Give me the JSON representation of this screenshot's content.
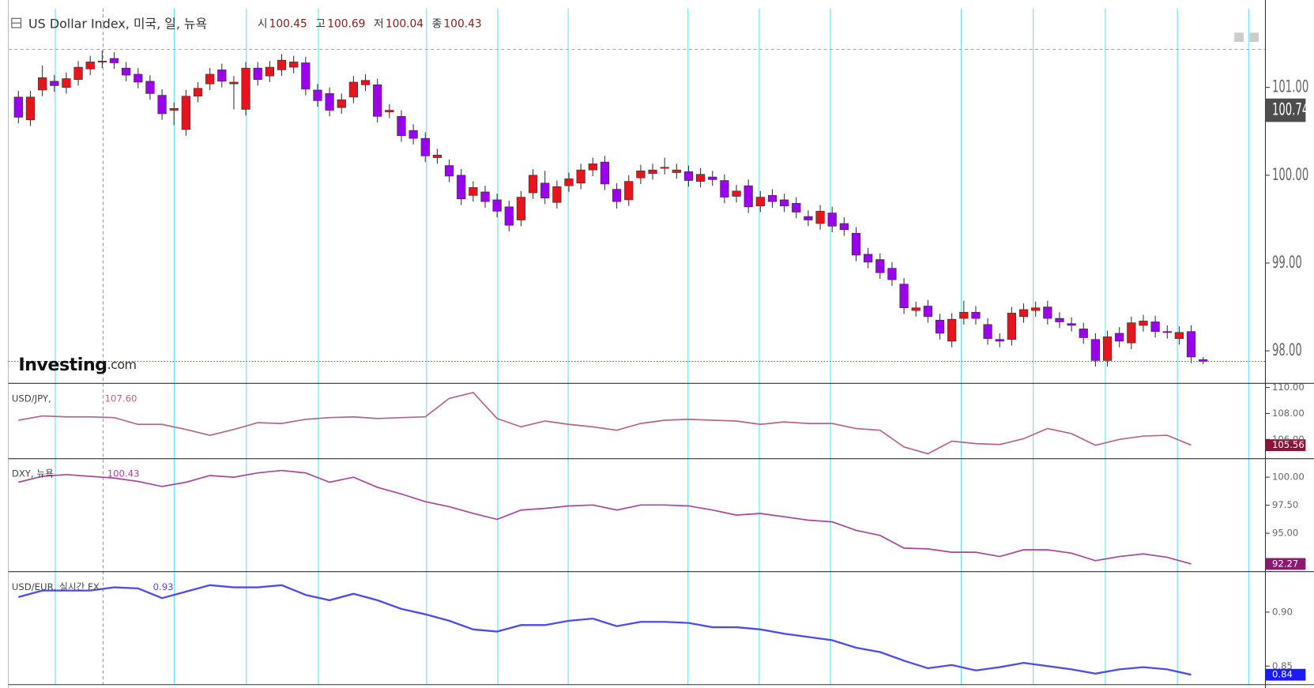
{
  "chart_data": [
    {
      "type": "candlestick",
      "title": "US Dollar Index, 미국, 일, 뉴욕",
      "info": [
        {
          "label": "시",
          "value": 100.45
        },
        {
          "label": "고",
          "value": 100.69
        },
        {
          "label": "저",
          "value": 100.04
        },
        {
          "label": "종",
          "value": 100.43
        }
      ],
      "watermark": [
        "Investing",
        ".com"
      ],
      "up_color": "#e8131b",
      "down_color": "#9b00ef",
      "cursor_value": 100.74,
      "ylim": [
        97.63,
        101.9
      ],
      "yticks": [
        {
          "value": 98,
          "label": "98.00"
        },
        {
          "value": 99,
          "label": "99.00"
        },
        {
          "value": 100,
          "label": "100.00"
        },
        {
          "value": 101,
          "label": "101.00"
        }
      ],
      "open": [
        100.89,
        100.63,
        100.97,
        101.07,
        101.0,
        101.09,
        101.21,
        101.29,
        101.33,
        101.22,
        101.15,
        101.07,
        100.91,
        100.74,
        100.52,
        100.9,
        101.04,
        101.2,
        101.04,
        100.75,
        101.22,
        101.13,
        101.2,
        101.23,
        101.28,
        100.97,
        100.93,
        100.77,
        100.89,
        101.03,
        101.03,
        100.72,
        100.67,
        100.51,
        100.42,
        100.2,
        100.11,
        100.0,
        99.77,
        99.81,
        99.72,
        99.64,
        99.49,
        99.8,
        99.91,
        99.69,
        99.88,
        99.91,
        100.06,
        100.15,
        99.84,
        99.72,
        99.97,
        100.02,
        100.08,
        100.03,
        100.04,
        99.93,
        99.98,
        99.94,
        99.76,
        99.88,
        99.65,
        99.77,
        99.72,
        99.68,
        99.53,
        99.45,
        99.57,
        99.45,
        99.34,
        99.1,
        99.04,
        98.94,
        98.76,
        98.46,
        98.51,
        98.35,
        98.11,
        98.37,
        98.44,
        98.3,
        98.13,
        98.13,
        98.39,
        98.46,
        98.5,
        98.37,
        98.31,
        98.25,
        98.13,
        97.89,
        98.2,
        98.09,
        98.29,
        98.33,
        98.22,
        98.14,
        98.22,
        97.9
      ],
      "high": [
        100.96,
        100.96,
        101.25,
        101.14,
        101.17,
        101.3,
        101.36,
        101.42,
        101.4,
        101.29,
        101.22,
        101.14,
        100.98,
        100.83,
        100.97,
        101.06,
        101.22,
        101.27,
        101.13,
        101.29,
        101.29,
        101.3,
        101.38,
        101.36,
        101.35,
        101.04,
        101.0,
        100.93,
        101.13,
        101.15,
        101.1,
        100.81,
        100.74,
        100.58,
        100.49,
        100.3,
        100.18,
        100.07,
        99.93,
        99.88,
        99.79,
        99.71,
        99.82,
        100.07,
        100.05,
        99.94,
        100.03,
        100.13,
        100.2,
        100.22,
        99.91,
        100.0,
        100.12,
        100.13,
        100.2,
        100.13,
        100.11,
        100.08,
        100.05,
        100.01,
        99.89,
        99.95,
        99.82,
        99.84,
        99.79,
        99.75,
        99.6,
        99.66,
        99.64,
        99.52,
        99.41,
        99.17,
        99.11,
        99.01,
        98.83,
        98.56,
        98.58,
        98.42,
        98.43,
        98.57,
        98.51,
        98.37,
        98.2,
        98.5,
        98.54,
        98.56,
        98.57,
        98.44,
        98.38,
        98.32,
        98.2,
        98.23,
        98.27,
        98.39,
        98.41,
        98.4,
        98.29,
        98.28,
        98.29,
        97.93
      ],
      "low": [
        100.59,
        100.56,
        100.9,
        100.95,
        100.93,
        101.02,
        101.14,
        101.22,
        101.21,
        101.07,
        100.99,
        100.86,
        100.63,
        100.57,
        100.45,
        100.83,
        100.97,
        101.0,
        100.75,
        100.68,
        101.02,
        101.06,
        101.13,
        101.16,
        100.91,
        100.78,
        100.67,
        100.7,
        100.82,
        100.96,
        100.6,
        100.65,
        100.38,
        100.35,
        100.15,
        100.13,
        99.92,
        99.66,
        99.7,
        99.63,
        99.52,
        99.36,
        99.42,
        99.73,
        99.67,
        99.62,
        99.81,
        99.84,
        99.99,
        99.83,
        99.62,
        99.65,
        99.9,
        99.95,
        100.01,
        99.96,
        99.87,
        99.86,
        99.88,
        99.68,
        99.69,
        99.57,
        99.58,
        99.63,
        99.58,
        99.51,
        99.42,
        99.38,
        99.35,
        99.31,
        99.02,
        98.94,
        98.82,
        98.74,
        98.42,
        98.39,
        98.32,
        98.13,
        98.04,
        98.3,
        98.3,
        98.07,
        98.04,
        98.06,
        98.32,
        98.39,
        98.3,
        98.26,
        98.22,
        98.08,
        97.82,
        97.82,
        98.04,
        98.02,
        98.22,
        98.15,
        98.14,
        98.07,
        97.86,
        97.85
      ],
      "close": [
        100.66,
        100.89,
        101.11,
        101.02,
        101.1,
        101.23,
        101.29,
        101.3,
        101.28,
        101.14,
        101.06,
        100.93,
        100.7,
        100.76,
        100.9,
        100.99,
        101.15,
        101.07,
        101.06,
        101.22,
        101.09,
        101.23,
        101.31,
        101.29,
        100.98,
        100.85,
        100.74,
        100.86,
        101.06,
        101.08,
        100.67,
        100.74,
        100.45,
        100.42,
        100.22,
        100.23,
        99.99,
        99.73,
        99.86,
        99.7,
        99.59,
        99.43,
        99.75,
        100.0,
        99.74,
        99.87,
        99.96,
        100.06,
        100.13,
        99.9,
        99.7,
        99.93,
        100.05,
        100.06,
        100.09,
        100.06,
        99.94,
        100.01,
        99.95,
        99.75,
        99.82,
        99.64,
        99.75,
        99.7,
        99.65,
        99.58,
        99.49,
        99.59,
        99.42,
        99.38,
        99.09,
        99.01,
        98.89,
        98.81,
        98.49,
        98.49,
        98.39,
        98.2,
        98.36,
        98.44,
        98.37,
        98.14,
        98.11,
        98.43,
        98.47,
        98.49,
        98.37,
        98.33,
        98.29,
        98.15,
        97.89,
        98.16,
        98.11,
        98.32,
        98.34,
        98.22,
        98.21,
        98.21,
        97.93,
        97.88
      ]
    },
    {
      "type": "line",
      "title": "USD/JPY,",
      "legend_value": {
        "value": 107.6,
        "label": "107.60"
      },
      "color": "#b4668a",
      "last_label": "105.56",
      "label_color": "#8a1438",
      "ylim": [
        104.52,
        110.32
      ],
      "yticks": [
        {
          "value": 106,
          "label": "106.00"
        },
        {
          "value": 108,
          "label": "108.00"
        },
        {
          "value": 110,
          "label": "110.00"
        }
      ],
      "values": [
        107.48,
        107.81,
        107.74,
        107.74,
        107.68,
        107.16,
        107.16,
        106.77,
        106.32,
        106.77,
        107.29,
        107.23,
        107.55,
        107.68,
        107.74,
        107.61,
        107.68,
        107.74,
        109.16,
        109.61,
        107.61,
        106.97,
        107.42,
        107.16,
        106.97,
        106.71,
        107.23,
        107.48,
        107.55,
        107.48,
        107.42,
        107.16,
        107.35,
        107.23,
        107.23,
        106.84,
        106.71,
        105.42,
        104.9,
        105.87,
        105.68,
        105.61,
        106.06,
        106.84,
        106.45,
        105.55,
        106.0,
        106.26,
        106.32,
        105.56
      ]
    },
    {
      "type": "line",
      "title": "DXY, 뉴욕",
      "legend_value": 100.43,
      "color": "#a8469c",
      "last_label": "92.27",
      "label_color": "#8a1a70",
      "ylim": [
        91.58,
        101.65
      ],
      "yticks": [
        {
          "value": 95,
          "label": "95.00"
        },
        {
          "value": 97.5,
          "label": "97.50"
        },
        {
          "value": 100,
          "label": "100.00"
        }
      ],
      "values": [
        99.55,
        100.08,
        100.23,
        100.08,
        99.92,
        99.62,
        99.17,
        99.55,
        100.15,
        100.0,
        100.38,
        100.6,
        100.38,
        99.55,
        100.0,
        99.1,
        98.5,
        97.82,
        97.37,
        96.77,
        96.24,
        97.07,
        97.22,
        97.44,
        97.52,
        97.07,
        97.52,
        97.52,
        97.44,
        97.07,
        96.62,
        96.77,
        96.47,
        96.17,
        96.02,
        95.26,
        94.81,
        93.68,
        93.61,
        93.31,
        93.31,
        92.93,
        93.53,
        93.53,
        93.23,
        92.56,
        92.93,
        93.16,
        92.86,
        92.27
      ]
    },
    {
      "type": "line",
      "title": "USD/EUR, 실시간 FX",
      "legend_value": 0.93,
      "color": "#4b4bf0",
      "last_label": "0.84",
      "label_color": "#1a1aff",
      "ylim": [
        0.8328,
        0.9375
      ],
      "yticks": [
        {
          "value": 0.85,
          "label": "0.85"
        },
        {
          "value": 0.9,
          "label": "0.90"
        }
      ],
      "values": [
        0.914,
        0.92,
        0.92,
        0.92,
        0.923,
        0.922,
        0.913,
        0.919,
        0.925,
        0.923,
        0.923,
        0.925,
        0.916,
        0.911,
        0.917,
        0.911,
        0.903,
        0.898,
        0.892,
        0.884,
        0.882,
        0.888,
        0.888,
        0.892,
        0.894,
        0.887,
        0.891,
        0.891,
        0.89,
        0.886,
        0.886,
        0.884,
        0.88,
        0.877,
        0.874,
        0.867,
        0.863,
        0.855,
        0.848,
        0.851,
        0.846,
        0.849,
        0.853,
        0.85,
        0.847,
        0.843,
        0.847,
        0.849,
        0.847,
        0.842
      ]
    }
  ]
}
